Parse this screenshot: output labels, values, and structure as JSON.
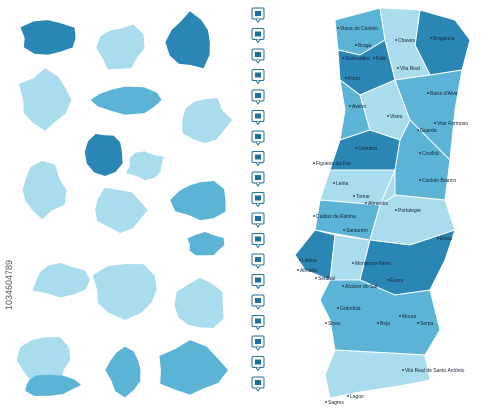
{
  "watermark": "1034604789",
  "labels": [
    "Viana do Castelo",
    "Braga",
    "Chaves",
    "Bragança",
    "Guimarães",
    "Fafe",
    "Vila Real",
    "Porto",
    "Baixo d'Alva",
    "Aveiro",
    "Viseu",
    "Vilar Formoso",
    "Guarda",
    "Coimbra",
    "Covilhã",
    "Figueira da Foz",
    "Castelo Branco",
    "Leiria",
    "Tomar",
    "Abrantes",
    "Caldas da Rainha",
    "Portalegre",
    "Santarém",
    "Elvas",
    "Lisboa",
    "Almada",
    "Setúbal",
    "Montemor-Novo",
    "Évora",
    "Alcácer do Sal",
    "Grândola",
    "Sines",
    "Beja",
    "Moura",
    "Serpa",
    "Vila Real de Santo António",
    "Lagos",
    "Sagres"
  ]
}
